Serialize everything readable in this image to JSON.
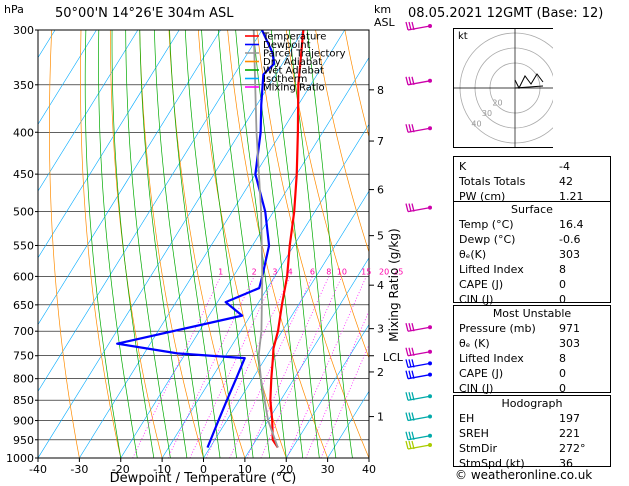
{
  "header": {
    "station": "50°00'N  14°26'E  304m  ASL",
    "datetime": "08.05.2021  12GMT  (Base: 12)",
    "left_unit": "hPa",
    "right_unit_km": "km",
    "right_unit_asl": "ASL"
  },
  "chart_data": {
    "type": "line",
    "subtype": "skew-T log-p",
    "xlabel": "Dewpoint / Temperature (°C)",
    "ylabel_right": "Mixing Ratio (g/kg)",
    "xlim": [
      -40,
      40
    ],
    "ylim_hpa": [
      1000,
      300
    ],
    "x_ticks": [
      -40,
      -30,
      -20,
      -10,
      0,
      10,
      20,
      30,
      40
    ],
    "pressure_ticks": [
      300,
      350,
      400,
      450,
      500,
      550,
      600,
      650,
      700,
      750,
      800,
      850,
      900,
      950,
      1000
    ],
    "km_ticks": [
      {
        "km": "1",
        "p": 890
      },
      {
        "km": "2",
        "p": 785
      },
      {
        "km": "3",
        "p": 695
      },
      {
        "km": "4",
        "p": 615
      },
      {
        "km": "5",
        "p": 535
      },
      {
        "km": "6",
        "p": 470
      },
      {
        "km": "7",
        "p": 410
      },
      {
        "km": "8",
        "p": 355
      }
    ],
    "lcl": {
      "label": "LCL",
      "p": 750
    },
    "mixing_ratio_labels": [
      "1",
      "2",
      "3",
      "4",
      "6",
      "8",
      "10",
      "15",
      "20",
      "25"
    ],
    "mixing_ratios": [
      1,
      2,
      3,
      4,
      6,
      8,
      10,
      15,
      20,
      25
    ],
    "legend": [
      "Temperature",
      "Dewpoint",
      "Parcel Trajectory",
      "Dry Adiabat",
      "Wet Adiabat",
      "Isotherm",
      "Mixing Ratio"
    ],
    "legend_colors": [
      "#ff0000",
      "#0000ff",
      "#999999",
      "#ff8c00",
      "#00aa00",
      "#00aaff",
      "#ff00ff"
    ],
    "series": [
      {
        "name": "Temperature",
        "color": "#ff0000",
        "points": [
          [
            971,
            16.4
          ],
          [
            950,
            14
          ],
          [
            900,
            11
          ],
          [
            850,
            7.5
          ],
          [
            800,
            4.5
          ],
          [
            750,
            1.5
          ],
          [
            735,
            0.5
          ],
          [
            700,
            -1
          ],
          [
            650,
            -4
          ],
          [
            600,
            -7
          ],
          [
            550,
            -11
          ],
          [
            500,
            -15
          ],
          [
            450,
            -20
          ],
          [
            400,
            -26
          ],
          [
            350,
            -33
          ],
          [
            300,
            -40
          ]
        ]
      },
      {
        "name": "Dewpoint",
        "color": "#0000ff",
        "points": [
          [
            971,
            -0.6
          ],
          [
            950,
            -1
          ],
          [
            900,
            -2
          ],
          [
            850,
            -3
          ],
          [
            800,
            -4
          ],
          [
            755,
            -5
          ],
          [
            745,
            -22
          ],
          [
            725,
            -38
          ],
          [
            670,
            -12
          ],
          [
            645,
            -18
          ],
          [
            620,
            -12
          ],
          [
            600,
            -13
          ],
          [
            550,
            -16
          ],
          [
            500,
            -22
          ],
          [
            450,
            -30
          ],
          [
            400,
            -35
          ],
          [
            370,
            -39
          ],
          [
            340,
            -43
          ],
          [
            330,
            -42
          ],
          [
            320,
            -44
          ],
          [
            300,
            -50
          ]
        ]
      },
      {
        "name": "Parcel Trajectory",
        "color": "#999999",
        "points": [
          [
            971,
            16.4
          ],
          [
            900,
            10
          ],
          [
            800,
            2
          ],
          [
            750,
            -2
          ],
          [
            700,
            -5
          ],
          [
            600,
            -13
          ],
          [
            500,
            -23
          ],
          [
            400,
            -36
          ],
          [
            300,
            -52
          ]
        ]
      }
    ],
    "wind_barbs": [
      {
        "p": 300,
        "color": "#cc00aa"
      },
      {
        "p": 350,
        "color": "#cc00aa"
      },
      {
        "p": 400,
        "color": "#cc00aa"
      },
      {
        "p": 500,
        "color": "#cc00aa"
      },
      {
        "p": 700,
        "color": "#cc00aa"
      },
      {
        "p": 750,
        "color": "#cc00aa"
      },
      {
        "p": 775,
        "color": "#0000ff"
      },
      {
        "p": 800,
        "color": "#0000ff"
      },
      {
        "p": 850,
        "color": "#00aaaa"
      },
      {
        "p": 900,
        "color": "#00aaaa"
      },
      {
        "p": 950,
        "color": "#00aaaa"
      },
      {
        "p": 975,
        "color": "#aacc00"
      }
    ]
  },
  "hodograph": {
    "label": "kt",
    "ring_labels": [
      "40",
      "30",
      "20"
    ]
  },
  "indices": [
    {
      "label": "K",
      "value": "-4"
    },
    {
      "label": "Totals Totals",
      "value": "42"
    },
    {
      "label": "PW (cm)",
      "value": "1.21"
    }
  ],
  "surface": {
    "title": "Surface",
    "rows": [
      {
        "label": "Temp (°C)",
        "value": "16.4"
      },
      {
        "label": "Dewp (°C)",
        "value": "-0.6"
      },
      {
        "label": "θₑ(K)",
        "value": "303"
      },
      {
        "label": "Lifted Index",
        "value": "8"
      },
      {
        "label": "CAPE (J)",
        "value": "0"
      },
      {
        "label": "CIN (J)",
        "value": "0"
      }
    ]
  },
  "most_unstable": {
    "title": "Most Unstable",
    "rows": [
      {
        "label": "Pressure (mb)",
        "value": "971"
      },
      {
        "label": "θₑ (K)",
        "value": "303"
      },
      {
        "label": "Lifted Index",
        "value": "8"
      },
      {
        "label": "CAPE (J)",
        "value": "0"
      },
      {
        "label": "CIN (J)",
        "value": "0"
      }
    ]
  },
  "hodo_table": {
    "title": "Hodograph",
    "rows": [
      {
        "label": "EH",
        "value": "197"
      },
      {
        "label": "SREH",
        "value": "221"
      },
      {
        "label": "StmDir",
        "value": "272°"
      },
      {
        "label": "StmSpd (kt)",
        "value": "36"
      }
    ]
  },
  "credit": "© weatheronline.co.uk"
}
